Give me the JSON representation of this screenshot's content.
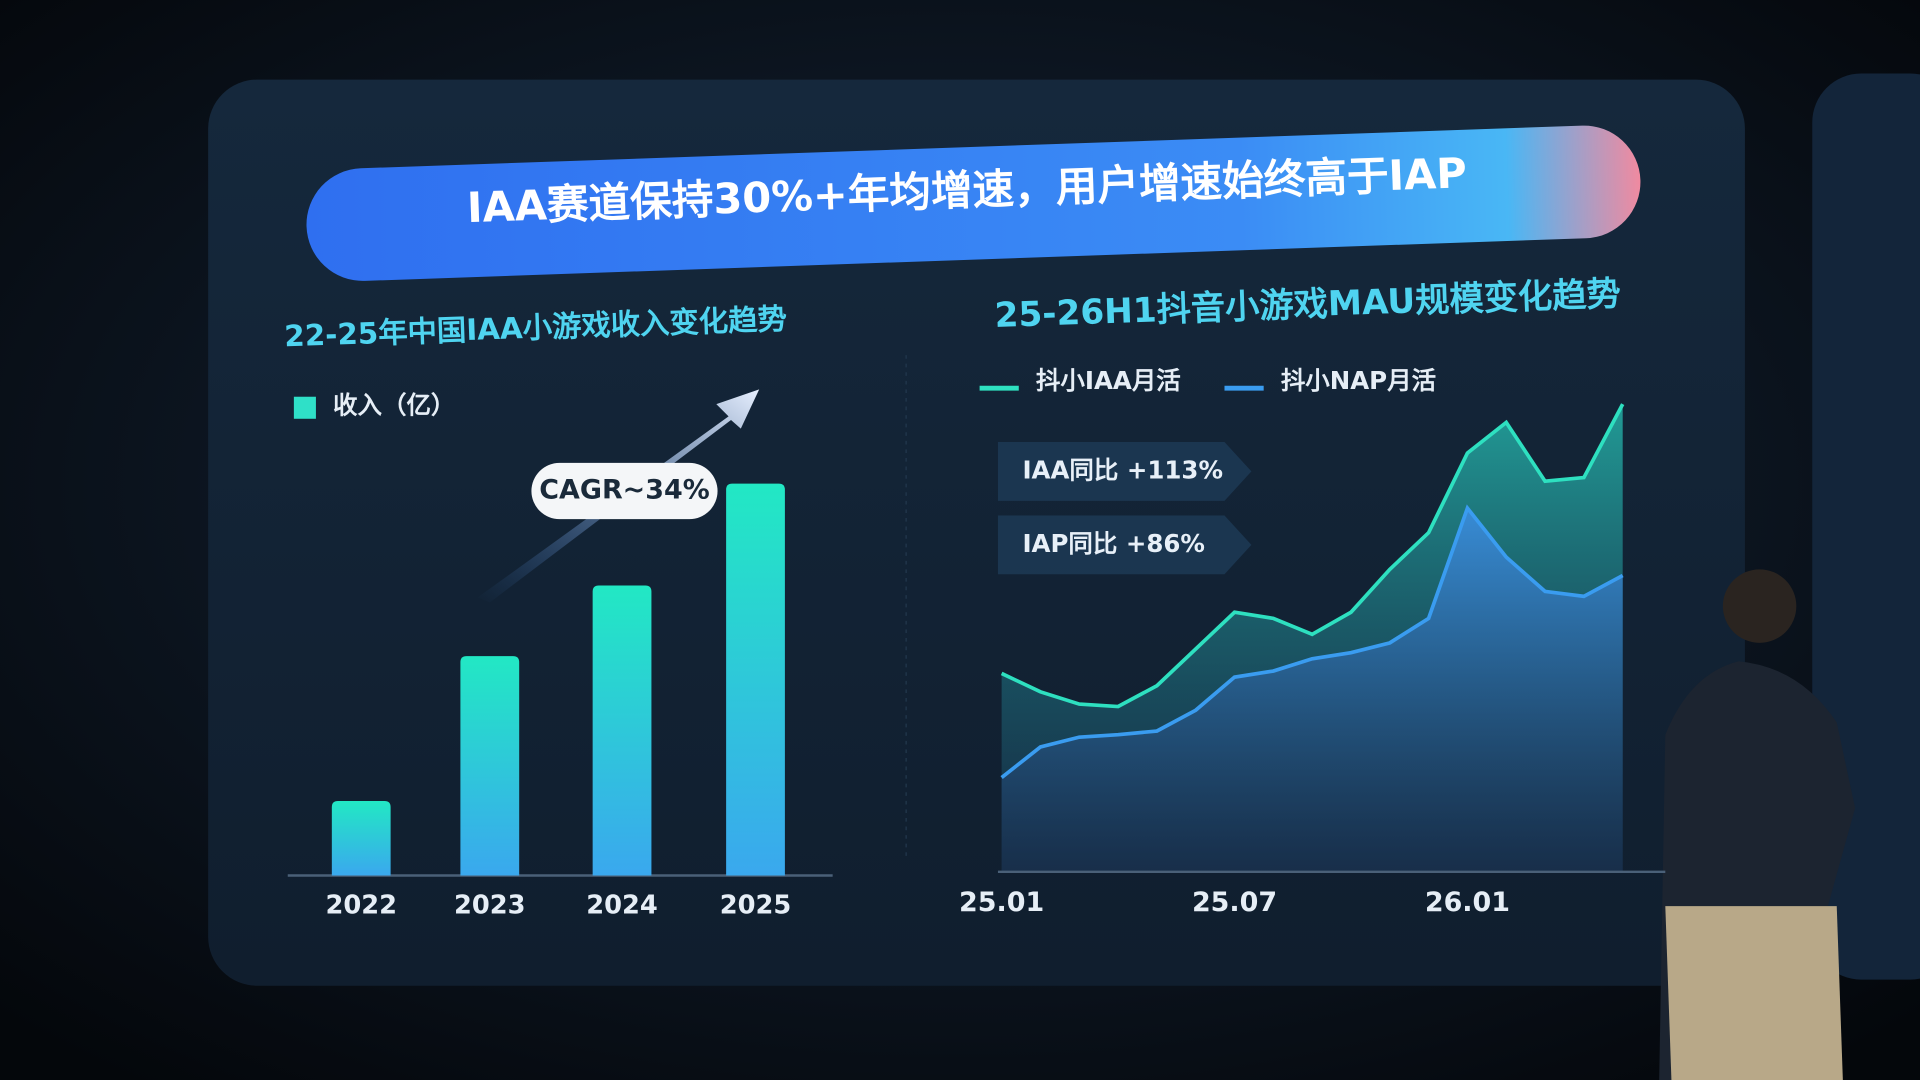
{
  "headline": "IAA赛道保持30%+年均增速，用户增速始终高于IAP",
  "chart_data": [
    {
      "type": "bar",
      "title": "22-25年中国IAA小游戏收入变化趋势",
      "annotation": "CAGR~34%",
      "categories": [
        "2022",
        "2023",
        "2024",
        "2025"
      ],
      "series": [
        {
          "name": "收入（亿）",
          "color": "#2fe0c8",
          "values": [
            19,
            56,
            74,
            100
          ]
        }
      ],
      "ylim": [
        0,
        100
      ]
    },
    {
      "type": "area",
      "title": "25-26H1抖音小游戏MAU规模变化趋势",
      "annotations": [
        "IAA同比 +113%",
        "IAP同比 +86%"
      ],
      "categories": [
        "25.01",
        null,
        null,
        null,
        null,
        null,
        "25.07",
        null,
        null,
        null,
        null,
        null,
        "26.01",
        null,
        null,
        null,
        null
      ],
      "series": [
        {
          "name": "抖小IAA月活",
          "color": "#2ee0c0",
          "values": [
            162,
            147,
            137,
            135,
            152,
            182,
            212,
            207,
            194,
            212,
            247,
            277,
            342,
            367,
            319,
            322,
            382
          ]
        },
        {
          "name": "抖小NAP月活",
          "color": "#3a9cf0",
          "values": [
            77,
            102,
            110,
            112,
            115,
            132,
            159,
            164,
            174,
            179,
            187,
            207,
            297,
            257,
            229,
            225,
            242
          ]
        }
      ],
      "ylim": [
        0,
        400
      ]
    }
  ]
}
